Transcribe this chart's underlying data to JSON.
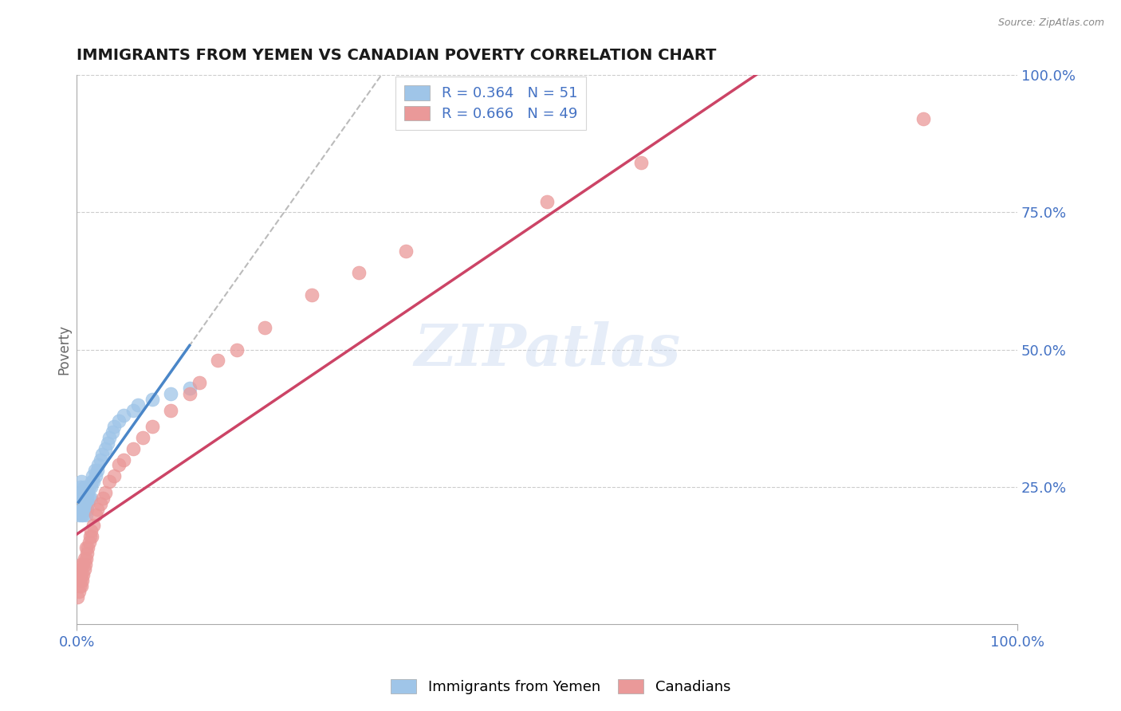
{
  "title": "IMMIGRANTS FROM YEMEN VS CANADIAN POVERTY CORRELATION CHART",
  "source": "Source: ZipAtlas.com",
  "ylabel": "Poverty",
  "watermark": "ZIPatlas",
  "xlim": [
    0.0,
    1.0
  ],
  "ylim": [
    0.0,
    1.0
  ],
  "blue_R": 0.364,
  "blue_N": 51,
  "pink_R": 0.666,
  "pink_N": 49,
  "blue_color": "#9fc5e8",
  "pink_color": "#ea9999",
  "blue_line_color": "#4a86c8",
  "pink_line_color": "#cc4466",
  "gray_dash_color": "#aaaaaa",
  "background_color": "#ffffff",
  "grid_color": "#cccccc",
  "title_color": "#1a1a1a",
  "axis_label_color": "#4472c4",
  "blue_scatter_x": [
    0.002,
    0.003,
    0.003,
    0.004,
    0.004,
    0.005,
    0.005,
    0.005,
    0.005,
    0.006,
    0.006,
    0.007,
    0.007,
    0.007,
    0.008,
    0.008,
    0.008,
    0.009,
    0.009,
    0.01,
    0.01,
    0.01,
    0.011,
    0.011,
    0.012,
    0.012,
    0.013,
    0.013,
    0.015,
    0.015,
    0.016,
    0.017,
    0.018,
    0.019,
    0.02,
    0.022,
    0.023,
    0.025,
    0.027,
    0.03,
    0.033,
    0.035,
    0.038,
    0.04,
    0.045,
    0.05,
    0.06,
    0.065,
    0.08,
    0.1,
    0.12
  ],
  "blue_scatter_y": [
    0.2,
    0.22,
    0.24,
    0.21,
    0.25,
    0.2,
    0.22,
    0.24,
    0.26,
    0.21,
    0.23,
    0.2,
    0.22,
    0.24,
    0.21,
    0.23,
    0.25,
    0.22,
    0.24,
    0.2,
    0.22,
    0.24,
    0.21,
    0.23,
    0.22,
    0.24,
    0.23,
    0.25,
    0.23,
    0.25,
    0.26,
    0.27,
    0.26,
    0.28,
    0.27,
    0.28,
    0.29,
    0.3,
    0.31,
    0.32,
    0.33,
    0.34,
    0.35,
    0.36,
    0.37,
    0.38,
    0.39,
    0.4,
    0.41,
    0.42,
    0.43
  ],
  "pink_scatter_x": [
    0.001,
    0.002,
    0.002,
    0.003,
    0.003,
    0.004,
    0.004,
    0.005,
    0.005,
    0.005,
    0.006,
    0.007,
    0.007,
    0.008,
    0.008,
    0.009,
    0.01,
    0.01,
    0.011,
    0.012,
    0.013,
    0.014,
    0.015,
    0.016,
    0.018,
    0.02,
    0.022,
    0.025,
    0.028,
    0.03,
    0.035,
    0.04,
    0.045,
    0.05,
    0.06,
    0.07,
    0.08,
    0.1,
    0.12,
    0.13,
    0.15,
    0.17,
    0.2,
    0.25,
    0.3,
    0.35,
    0.5,
    0.6,
    0.9
  ],
  "pink_scatter_y": [
    0.05,
    0.06,
    0.08,
    0.07,
    0.09,
    0.08,
    0.1,
    0.07,
    0.09,
    0.11,
    0.08,
    0.09,
    0.11,
    0.1,
    0.12,
    0.11,
    0.12,
    0.14,
    0.13,
    0.14,
    0.15,
    0.16,
    0.17,
    0.16,
    0.18,
    0.2,
    0.21,
    0.22,
    0.23,
    0.24,
    0.26,
    0.27,
    0.29,
    0.3,
    0.32,
    0.34,
    0.36,
    0.39,
    0.42,
    0.44,
    0.48,
    0.5,
    0.54,
    0.6,
    0.64,
    0.68,
    0.77,
    0.84,
    0.92
  ]
}
